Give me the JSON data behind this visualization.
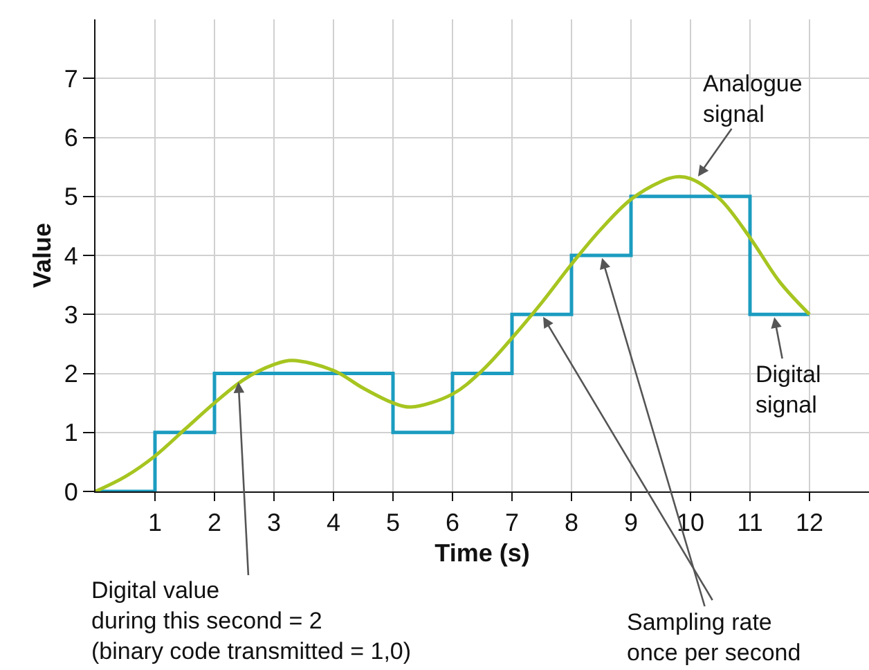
{
  "chart_data": {
    "type": "step",
    "xlabel": "Time (s)",
    "ylabel": "Value",
    "xlim": [
      0,
      13
    ],
    "ylim": [
      0,
      8
    ],
    "xticks": [
      1,
      2,
      3,
      4,
      5,
      6,
      7,
      8,
      9,
      10,
      11,
      12
    ],
    "yticks": [
      0,
      1,
      2,
      3,
      4,
      5,
      6,
      7
    ],
    "grid": true,
    "series": [
      {
        "color": "#1c9cc0",
        "x": [
          0,
          1,
          2,
          3,
          4,
          5,
          6,
          7,
          8,
          9,
          10,
          11,
          12
        ],
        "values": [
          0,
          1,
          2,
          2,
          2,
          1,
          2,
          3,
          4,
          5,
          5,
          3,
          3
        ]
      },
      {
        "type": "line",
        "color": "#a6c520",
        "x": [
          0,
          0.5,
          1,
          1.5,
          2,
          2.5,
          3,
          3.3,
          4,
          4.5,
          5,
          5.3,
          6,
          6.5,
          7,
          7.5,
          8,
          8.5,
          9,
          9.5,
          9.75,
          10,
          10.5,
          11,
          11.5,
          12
        ],
        "values": [
          0,
          0.25,
          0.6,
          1.05,
          1.5,
          1.9,
          2.15,
          2.22,
          2.05,
          1.75,
          1.5,
          1.43,
          1.65,
          2.05,
          2.6,
          3.2,
          3.85,
          4.45,
          4.95,
          5.25,
          5.33,
          5.3,
          4.95,
          4.3,
          3.55,
          3.0
        ]
      }
    ],
    "annotations": [
      {
        "text": "Analogue\nsignal",
        "x": 10.1,
        "y": 5.3
      },
      {
        "text": "Digital\nsignal",
        "x": 11.4,
        "y": 3.0
      },
      {
        "text": "Digital value\nduring this second = 2\n(binary code transmitted = 1,0)",
        "x": 2.4,
        "y": 1.9
      },
      {
        "text": "Sampling rate\nonce per second",
        "x": 8.5,
        "y": 4
      }
    ]
  }
}
